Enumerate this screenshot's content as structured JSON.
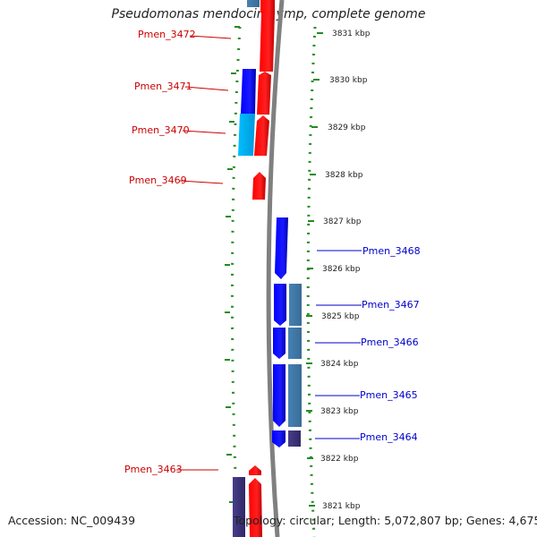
{
  "title": "Pseudomonas mendocina ymp, complete genome",
  "accession": "Accession: NC_009439",
  "topology": "Topology: circular; Length: 5,072,807 bp; Genes: 4,675",
  "ticks": [
    "3831 kbp",
    "3830 kbp",
    "3829 kbp",
    "3828 kbp",
    "3827 kbp",
    "3826 kbp",
    "3825 kbp",
    "3824 kbp",
    "3823 kbp",
    "3822 kbp",
    "3821 kbp"
  ],
  "genes_left": [
    "Pmen_3472",
    "Pmen_3471",
    "Pmen_3470",
    "Pmen_3469",
    "Pmen_3463"
  ],
  "genes_right": [
    "Pmen_3468",
    "Pmen_3467",
    "Pmen_3466",
    "Pmen_3465",
    "Pmen_3464"
  ],
  "colors": {
    "forward_cds": "#ff0000",
    "reverse_cds": "#0000ff",
    "light_cds": "#00bfff",
    "steel_cds": "#4682b4",
    "slate_cds": "#483d8b",
    "backbone": "#808080",
    "ticks": "#228b22",
    "left_labels": "#cc0000",
    "right_labels": "#0000cc"
  }
}
